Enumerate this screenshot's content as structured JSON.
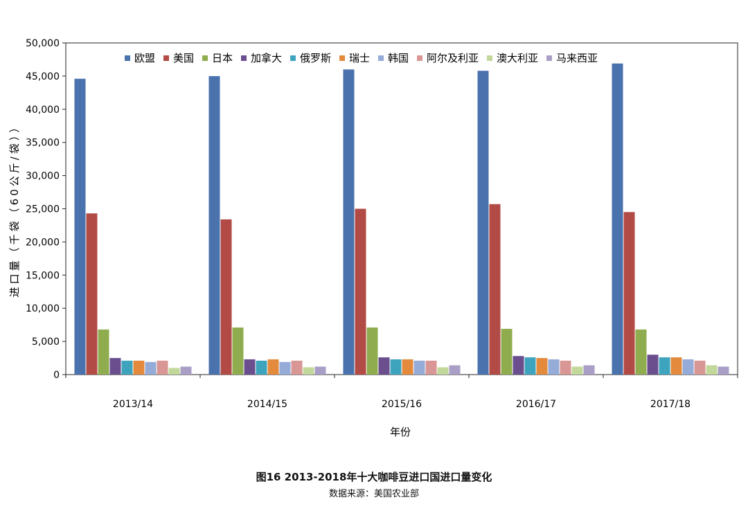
{
  "chart_data": {
    "type": "bar",
    "title": "图16 2013-2018年十大咖啡豆进口国进口量变化",
    "subtitle": "数据来源：美国农业部",
    "xlabel": "年份",
    "ylabel": "进口量（千袋（60公斤/袋））",
    "ylim": [
      0,
      50000
    ],
    "yticks": [
      0,
      5000,
      10000,
      15000,
      20000,
      25000,
      30000,
      35000,
      40000,
      45000,
      50000
    ],
    "ytick_labels": [
      "0",
      "5,000",
      "10,000",
      "15,000",
      "20,000",
      "25,000",
      "30,000",
      "35,000",
      "40,000",
      "45,000",
      "50,000"
    ],
    "grid": false,
    "legend": "top",
    "categories": [
      "2013/14",
      "2014/15",
      "2015/16",
      "2016/17",
      "2017/18"
    ],
    "series": [
      {
        "name": "欧盟",
        "color": "#4a72ad",
        "values": [
          44600,
          45000,
          46000,
          45800,
          46900
        ]
      },
      {
        "name": "美国",
        "color": "#b24a46",
        "values": [
          24300,
          23400,
          25000,
          25700,
          24500
        ]
      },
      {
        "name": "日本",
        "color": "#8fac4e",
        "values": [
          6800,
          7100,
          7100,
          6900,
          6800
        ]
      },
      {
        "name": "加拿大",
        "color": "#6a4e8e",
        "values": [
          2500,
          2300,
          2600,
          2800,
          3000
        ]
      },
      {
        "name": "俄罗斯",
        "color": "#3ea4be",
        "values": [
          2100,
          2100,
          2300,
          2600,
          2600
        ]
      },
      {
        "name": "瑞士",
        "color": "#e38a3d",
        "values": [
          2100,
          2300,
          2300,
          2500,
          2600
        ]
      },
      {
        "name": "韩国",
        "color": "#95abd8",
        "values": [
          1900,
          1900,
          2100,
          2300,
          2300
        ]
      },
      {
        "name": "阿尔及利亚",
        "color": "#d89694",
        "values": [
          2100,
          2100,
          2100,
          2100,
          2100
        ]
      },
      {
        "name": "澳大利亚",
        "color": "#c2d89a",
        "values": [
          1000,
          1100,
          1100,
          1200,
          1400
        ]
      },
      {
        "name": "马来西亚",
        "color": "#a99fc6",
        "values": [
          1200,
          1200,
          1400,
          1400,
          1200
        ]
      }
    ]
  }
}
